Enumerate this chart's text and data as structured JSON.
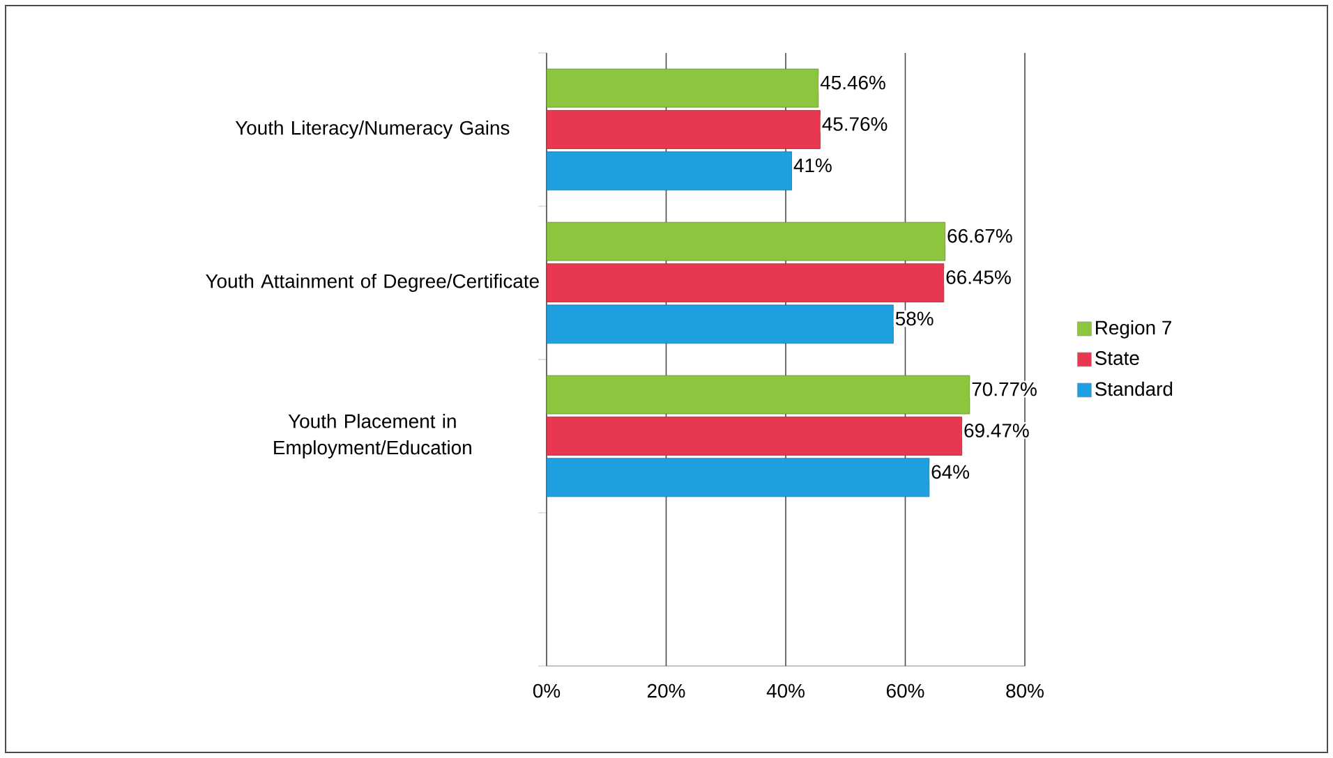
{
  "chart_data": {
    "type": "bar",
    "orientation": "horizontal",
    "categories": [
      "Youth Literacy/Numeracy Gains",
      "Youth Attainment of Degree/Certificate",
      "Youth Placement in Employment/Education",
      null
    ],
    "series": [
      {
        "name": "Region 7",
        "color": "#8cc63e",
        "values": [
          45.46,
          66.67,
          70.77,
          null
        ],
        "value_labels": [
          "45.46%",
          "66.67%",
          "70.77%",
          null
        ]
      },
      {
        "name": "State",
        "color": "#e8384f",
        "values": [
          45.76,
          66.45,
          69.47,
          null
        ],
        "value_labels": [
          "45.76%",
          "66.45%",
          "69.47%",
          null
        ]
      },
      {
        "name": "Standard",
        "color": "#1ea0e0",
        "values": [
          41,
          58,
          64,
          null
        ],
        "value_labels": [
          "41%",
          "58%",
          "64%",
          null
        ]
      }
    ],
    "xlim": [
      0,
      80
    ],
    "xticks": [
      {
        "value": 0,
        "label": "0%"
      },
      {
        "value": 20,
        "label": "20%"
      },
      {
        "value": 40,
        "label": "40%"
      },
      {
        "value": 60,
        "label": "60%"
      },
      {
        "value": 80,
        "label": "80%"
      }
    ],
    "grid": "x",
    "legend": "right"
  }
}
